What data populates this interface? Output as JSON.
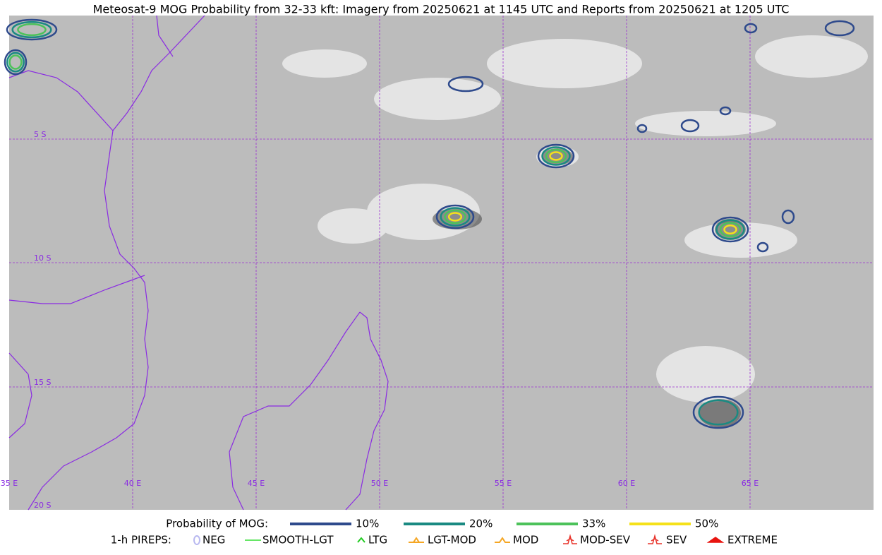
{
  "title": "Meteosat-9 MOG Probability from 32-33 kft: Imagery from 20250621 at 1145 UTC and Reports from 20250621 at 1205 UTC",
  "map": {
    "lat_labels": [
      "5 S",
      "10 S",
      "15 S",
      "20 S"
    ],
    "lon_labels": [
      "35 E",
      "40 E",
      "45 E",
      "50 E",
      "55 E",
      "60 E",
      "65 E"
    ]
  },
  "legend": {
    "probability_title": "Probability of MOG:",
    "probability_levels": [
      {
        "label": "10%",
        "color": "#2e4a8c"
      },
      {
        "label": "20%",
        "color": "#1a8a82"
      },
      {
        "label": "33%",
        "color": "#4cc25a"
      },
      {
        "label": "50%",
        "color": "#f5e11a"
      }
    ],
    "pireps_title": "1-h PIREPS:",
    "pireps": [
      {
        "label": "NEG",
        "color": "#b8b8f0"
      },
      {
        "label": "SMOOTH-LGT",
        "color": "#33dd33"
      },
      {
        "label": "LTG",
        "color": "#22cc22"
      },
      {
        "label": "LGT-MOD",
        "color": "#f5a623"
      },
      {
        "label": "MOD",
        "color": "#f5a623"
      },
      {
        "label": "MOD-SEV",
        "color": "#e8332a"
      },
      {
        "label": "SEV",
        "color": "#e8332a"
      },
      {
        "label": "EXTREME",
        "color": "#e8140f"
      }
    ]
  }
}
